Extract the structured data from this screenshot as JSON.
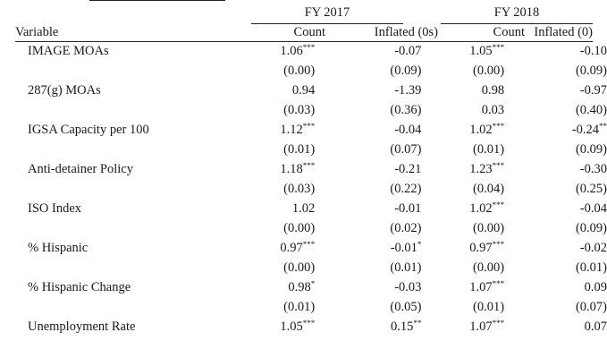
{
  "headers": {
    "group_fy2017": "FY 2017",
    "group_fy2018": "FY 2018",
    "variable": "Variable",
    "count_2017": "Count",
    "inflated_2017": "Inflated (0s)",
    "count_2018": "Count",
    "inflated_2018": "Inflated (0)"
  },
  "rows": [
    {
      "label": "IMAGE MOAs",
      "coef": [
        {
          "v": "1.06",
          "s": "***"
        },
        {
          "v": "-0.07",
          "s": ""
        },
        {
          "v": "1.05",
          "s": "***"
        },
        {
          "v": "-0.10",
          "s": ""
        }
      ],
      "se": [
        "(0.00)",
        "(0.09)",
        "(0.00)",
        "(0.09)"
      ]
    },
    {
      "label": "287(g) MOAs",
      "coef": [
        {
          "v": "0.94",
          "s": ""
        },
        {
          "v": "-1.39",
          "s": ""
        },
        {
          "v": "0.98",
          "s": ""
        },
        {
          "v": "-0.97",
          "s": ""
        }
      ],
      "se": [
        "(0.03)",
        "(0.36)",
        "0.03",
        "(0.40)"
      ]
    },
    {
      "label": "IGSA Capacity per 100",
      "coef": [
        {
          "v": "1.12",
          "s": "***"
        },
        {
          "v": "-0.04",
          "s": ""
        },
        {
          "v": "1.02",
          "s": "***"
        },
        {
          "v": "-0.24",
          "s": "**"
        }
      ],
      "se": [
        "(0.01)",
        "(0.07)",
        "(0.01)",
        "(0.09)"
      ]
    },
    {
      "label": "Anti-detainer Policy",
      "coef": [
        {
          "v": "1.18",
          "s": "***"
        },
        {
          "v": "-0.21",
          "s": ""
        },
        {
          "v": "1.23",
          "s": "***"
        },
        {
          "v": "-0.30",
          "s": ""
        }
      ],
      "se": [
        "(0.03)",
        "(0.22)",
        "(0.04)",
        "(0.25)"
      ]
    },
    {
      "label": "ISO Index",
      "coef": [
        {
          "v": "1.02",
          "s": ""
        },
        {
          "v": "-0.01",
          "s": ""
        },
        {
          "v": "1.02",
          "s": "***"
        },
        {
          "v": "-0.04",
          "s": ""
        }
      ],
      "se": [
        "(0.00)",
        "(0.02)",
        "(0.00)",
        "(0.09)"
      ]
    },
    {
      "label": "% Hispanic",
      "coef": [
        {
          "v": "0.97",
          "s": "***"
        },
        {
          "v": "-0.01",
          "s": "*"
        },
        {
          "v": "0.97",
          "s": "***"
        },
        {
          "v": "-0.02",
          "s": ""
        }
      ],
      "se": [
        "(0.00)",
        "(0.01)",
        "(0.00)",
        "(0.01)"
      ]
    },
    {
      "label": "% Hispanic Change",
      "coef": [
        {
          "v": "0.98",
          "s": "*"
        },
        {
          "v": "-0.03",
          "s": ""
        },
        {
          "v": "1.07",
          "s": "***"
        },
        {
          "v": "0.09",
          "s": ""
        }
      ],
      "se": [
        "(0.01)",
        "(0.05)",
        "(0.01)",
        "(0.07)"
      ]
    },
    {
      "label": "Unemployment Rate",
      "coef": [
        {
          "v": "1.05",
          "s": "***"
        },
        {
          "v": "0.15",
          "s": "**"
        },
        {
          "v": "1.07",
          "s": "***"
        },
        {
          "v": "0.07",
          "s": ""
        }
      ],
      "se": []
    }
  ]
}
